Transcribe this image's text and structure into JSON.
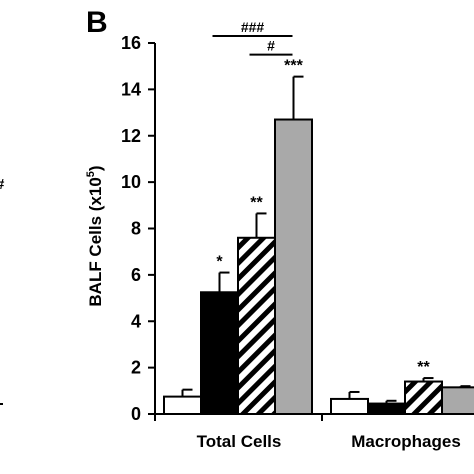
{
  "panel_label": "B",
  "left_fragment": {
    "mark": "#"
  },
  "chart_data": {
    "type": "bar",
    "title": "",
    "xlabel": "",
    "ylabel": "BALF Cells (x10",
    "ylabel_exponent": "5",
    "ylabel_suffix": ")",
    "ylim": [
      0,
      16
    ],
    "yticks": [
      0,
      2,
      4,
      6,
      8,
      10,
      12,
      14,
      16
    ],
    "grid": false,
    "categories": [
      "Total Cells",
      "Macrophages"
    ],
    "series": [
      {
        "fill": "#ffffff",
        "pattern": "none",
        "values": [
          0.75,
          0.65
        ],
        "errors": [
          0.3,
          0.3
        ],
        "annotations": [
          "",
          ""
        ]
      },
      {
        "fill": "#000000",
        "pattern": "none",
        "values": [
          5.25,
          0.45
        ],
        "errors": [
          0.85,
          0.12
        ],
        "annotations": [
          "*",
          ""
        ]
      },
      {
        "fill": "#ffffff",
        "pattern": "diagonal-stripes",
        "values": [
          7.6,
          1.4
        ],
        "errors": [
          1.05,
          0.15
        ],
        "annotations": [
          "**",
          "**"
        ]
      },
      {
        "fill": "#a9a9a9",
        "pattern": "none",
        "values": [
          12.7,
          1.15
        ],
        "errors": [
          1.85,
          0.05
        ],
        "annotations": [
          "***",
          ""
        ]
      }
    ],
    "significance_brackets": [
      {
        "label": "###",
        "category": "Total Cells",
        "from_series": 1,
        "to_series": 3,
        "level": 16.3
      },
      {
        "label": "#",
        "category": "Total Cells",
        "from_series": 2,
        "to_series": 3,
        "level": 15.5
      }
    ]
  }
}
